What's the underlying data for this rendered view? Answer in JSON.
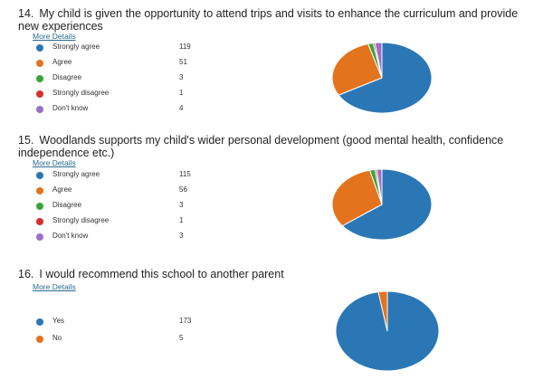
{
  "colors": {
    "strongly_agree": "#2b77b5",
    "agree": "#e3731d",
    "disagree": "#3aa43a",
    "strongly_disagree": "#d62f2f",
    "dont_know": "#9b6fc7",
    "link": "#2b6a8f"
  },
  "questions": [
    {
      "number": "14.",
      "title": "My child is given the opportunity to attend trips and visits to enhance the curriculum and provide new experiences",
      "more_details": "More Details",
      "options": [
        {
          "label": "Strongly agree",
          "count": "119",
          "color": "#2b77b5"
        },
        {
          "label": "Agree",
          "count": "51",
          "color": "#e3731d"
        },
        {
          "label": "Disagree",
          "count": "3",
          "color": "#3aa43a"
        },
        {
          "label": "Strongly disagree",
          "count": "1",
          "color": "#d62f2f"
        },
        {
          "label": "Don't know",
          "count": "4",
          "color": "#9b6fc7"
        }
      ]
    },
    {
      "number": "15.",
      "title": "Woodlands supports my child's wider personal development (good mental health, confidence independence etc.)",
      "more_details": "More Details",
      "options": [
        {
          "label": "Strongly agree",
          "count": "115",
          "color": "#2b77b5"
        },
        {
          "label": "Agree",
          "count": "56",
          "color": "#e3731d"
        },
        {
          "label": "Disagree",
          "count": "3",
          "color": "#3aa43a"
        },
        {
          "label": "Strongly disagree",
          "count": "1",
          "color": "#d62f2f"
        },
        {
          "label": "Don't know",
          "count": "3",
          "color": "#9b6fc7"
        }
      ]
    },
    {
      "number": "16.",
      "title": "I would recommend this school to another parent",
      "more_details": "More Details",
      "options": [
        {
          "label": "Yes",
          "count": "173",
          "color": "#2b77b5"
        },
        {
          "label": "No",
          "count": "5",
          "color": "#e3731d"
        }
      ]
    }
  ]
}
